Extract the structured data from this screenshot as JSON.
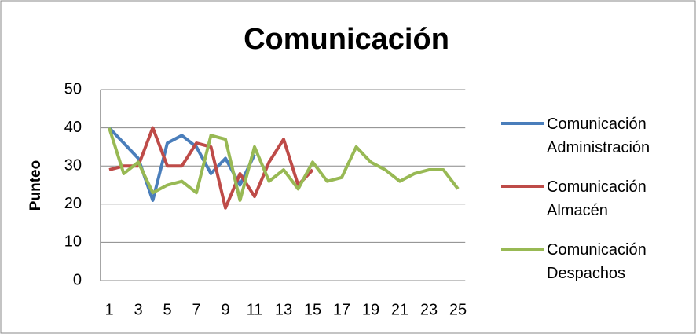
{
  "chart_data": {
    "type": "line",
    "title": "Comunicación",
    "y_label": "Punteo",
    "categories": [
      "1",
      null,
      "3",
      null,
      "5",
      null,
      "7",
      null,
      "9",
      null,
      "11",
      null,
      "13",
      null,
      "15",
      null,
      "17",
      null,
      "19",
      null,
      "21",
      null,
      "23",
      null,
      "25"
    ],
    "series": [
      {
        "name": "Comunicación Administración",
        "color": "#4a7ebb",
        "values": [
          40,
          36,
          32,
          21,
          36,
          38,
          35,
          28,
          32,
          25,
          33,
          null,
          null,
          null,
          null,
          null,
          null,
          null,
          null,
          null,
          null,
          null,
          null,
          null,
          null
        ]
      },
      {
        "name": "Comunicación Almacén",
        "color": "#be4b48",
        "values": [
          29,
          30,
          30,
          40,
          30,
          30,
          36,
          35,
          19,
          28,
          22,
          31,
          37,
          25,
          29,
          null,
          null,
          null,
          null,
          null,
          null,
          null,
          null,
          null,
          null
        ]
      },
      {
        "name": "Comunicación Despachos",
        "color": "#98b954",
        "values": [
          40,
          28,
          31,
          23,
          25,
          26,
          23,
          38,
          37,
          21,
          35,
          26,
          29,
          24,
          31,
          26,
          27,
          35,
          31,
          29,
          26,
          28,
          29,
          29,
          24
        ]
      }
    ],
    "ylim": [
      0,
      50
    ],
    "yticks": [
      0,
      10,
      20,
      30,
      40,
      50
    ],
    "grid": true,
    "legend": "right"
  }
}
